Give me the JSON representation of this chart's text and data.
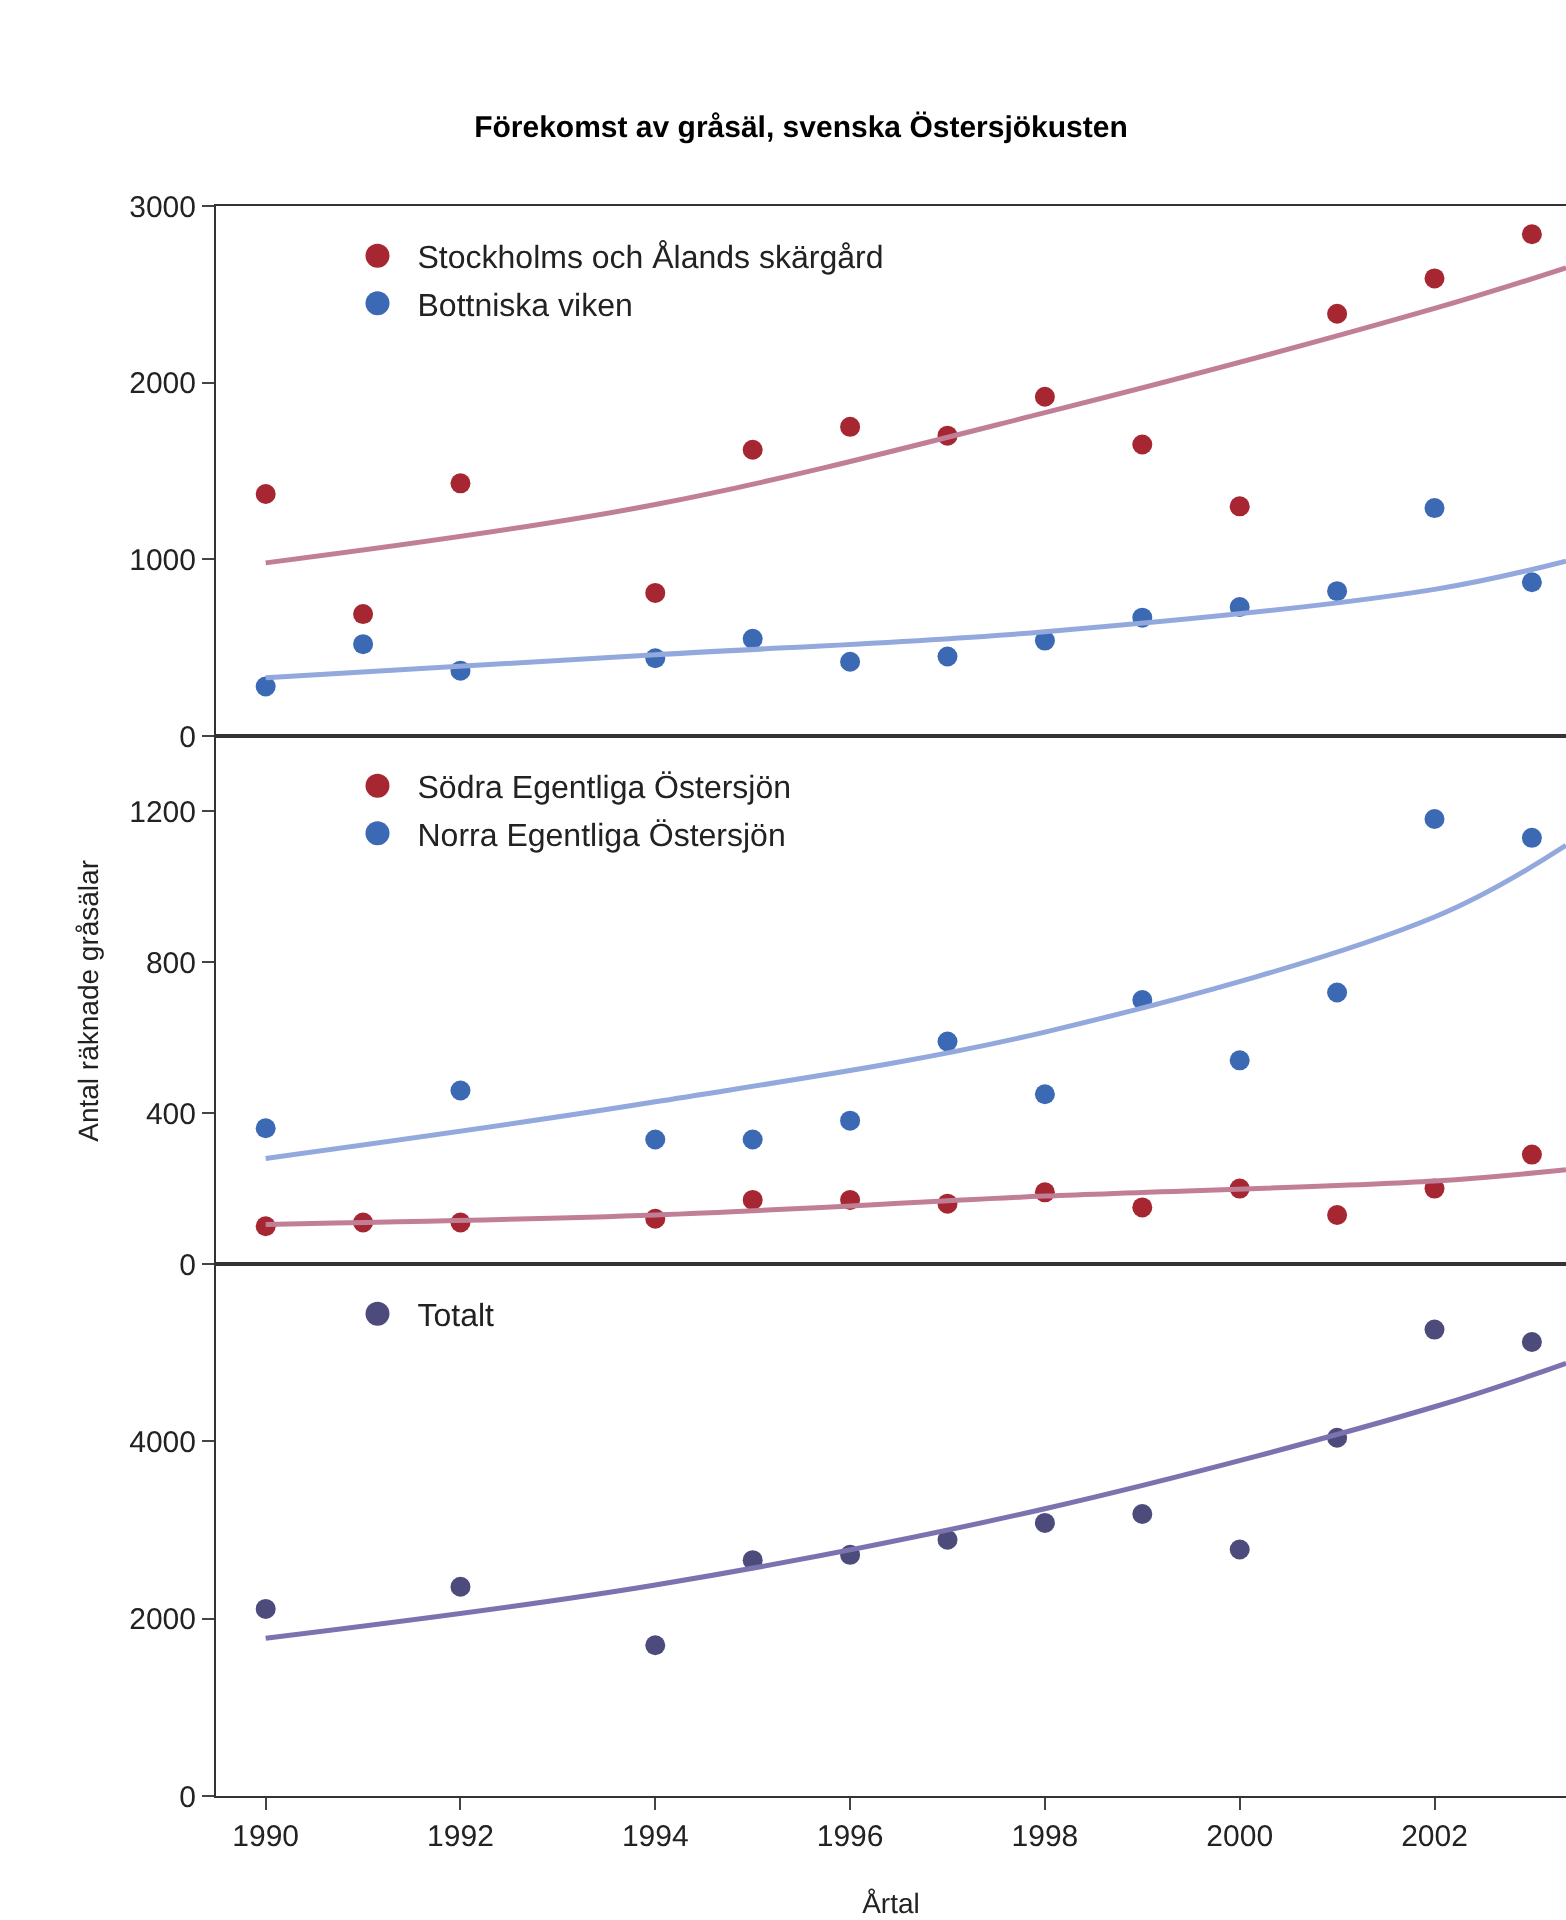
{
  "chart_data": [
    {
      "type": "scatter",
      "title": "Förekomst av gråsäl, svenska Östersjökusten",
      "xlim": [
        1989.49,
        2003.35
      ],
      "ylim": [
        0,
        3000
      ],
      "yticks": [
        0,
        1000,
        2000,
        3000
      ],
      "tick_labels": "y",
      "legend": "top left",
      "marker": "circle",
      "grid": false,
      "series": [
        {
          "name": "Stockholms och Ålands skärgård",
          "color": "#a62631",
          "x": [
            1990,
            1991,
            1992,
            1994,
            1995,
            1996,
            1997,
            1998,
            1999,
            2000,
            2001,
            2002,
            2003
          ],
          "values": [
            1370,
            690,
            1430,
            810,
            1620,
            1750,
            1700,
            1920,
            1650,
            1300,
            2390,
            2590,
            2840
          ]
        },
        {
          "name": "Bottniska viken",
          "color": "#3b69b3",
          "x": [
            1990,
            1991,
            1992,
            1994,
            1995,
            1996,
            1997,
            1998,
            1999,
            2000,
            2001,
            2002,
            2003
          ],
          "values": [
            280,
            520,
            370,
            440,
            550,
            420,
            450,
            540,
            670,
            730,
            820,
            1290,
            870
          ]
        },
        {
          "type": "line",
          "marker": "none",
          "color": "#c17f97",
          "x": [
            1990,
            1994,
            1998,
            2002,
            2003.35
          ],
          "values": [
            980,
            1310,
            1830,
            2420,
            2650
          ]
        },
        {
          "type": "line",
          "marker": "none",
          "color": "#93a8dc",
          "x": [
            1990,
            1994,
            1998,
            2002,
            2003.35
          ],
          "values": [
            330,
            460,
            590,
            830,
            990
          ]
        }
      ]
    },
    {
      "type": "scatter",
      "ylabel": "Antal räknade gråsälar",
      "xlim": [
        1989.49,
        2003.35
      ],
      "ylim": [
        0,
        1400
      ],
      "yticks": [
        0,
        400,
        800,
        1200
      ],
      "tick_labels": "y",
      "legend": "top left",
      "marker": "circle",
      "grid": false,
      "series": [
        {
          "name": "Södra Egentliga Östersjön",
          "color": "#a62631",
          "x": [
            1990,
            1991,
            1992,
            1994,
            1995,
            1996,
            1997,
            1998,
            1999,
            2000,
            2001,
            2002,
            2003
          ],
          "values": [
            100,
            110,
            110,
            120,
            170,
            170,
            160,
            190,
            150,
            200,
            130,
            200,
            290
          ]
        },
        {
          "name": "Norra Egentliga Östersjön",
          "color": "#3b69b3",
          "x": [
            1990,
            1992,
            1994,
            1995,
            1996,
            1997,
            1998,
            1999,
            2000,
            2001,
            2002,
            2003
          ],
          "values": [
            360,
            460,
            330,
            330,
            380,
            590,
            450,
            700,
            540,
            720,
            1180,
            1130
          ]
        },
        {
          "type": "line",
          "marker": "none",
          "color": "#c17f97",
          "x": [
            1990,
            1994,
            1998,
            2002,
            2003.35
          ],
          "values": [
            105,
            130,
            180,
            220,
            250
          ]
        },
        {
          "type": "line",
          "marker": "none",
          "color": "#93a8dc",
          "x": [
            1990,
            1994,
            1998,
            2002,
            2003.35
          ],
          "values": [
            280,
            430,
            615,
            920,
            1110
          ]
        }
      ]
    },
    {
      "type": "scatter",
      "xlabel": "Årtal",
      "xlim": [
        1989.49,
        2003.35
      ],
      "xticks": [
        1990,
        1992,
        1994,
        1996,
        1998,
        2000,
        2002
      ],
      "ylim": [
        0,
        6000
      ],
      "yticks": [
        0,
        2000,
        4000
      ],
      "legend": "top left",
      "marker": "circle",
      "grid": false,
      "series": [
        {
          "name": "Totalt",
          "color": "#4c4b7c",
          "x": [
            1990,
            1992,
            1994,
            1995,
            1996,
            1997,
            1998,
            1999,
            2000,
            2001,
            2002,
            2003
          ],
          "values": [
            2110,
            2360,
            1700,
            2660,
            2720,
            2890,
            3080,
            3180,
            2780,
            4040,
            5260,
            5120
          ]
        },
        {
          "type": "line",
          "marker": "none",
          "color": "#7b72b0",
          "x": [
            1990,
            1994,
            1998,
            2002,
            2003.35
          ],
          "values": [
            1780,
            2380,
            3240,
            4390,
            4880
          ]
        }
      ]
    }
  ]
}
